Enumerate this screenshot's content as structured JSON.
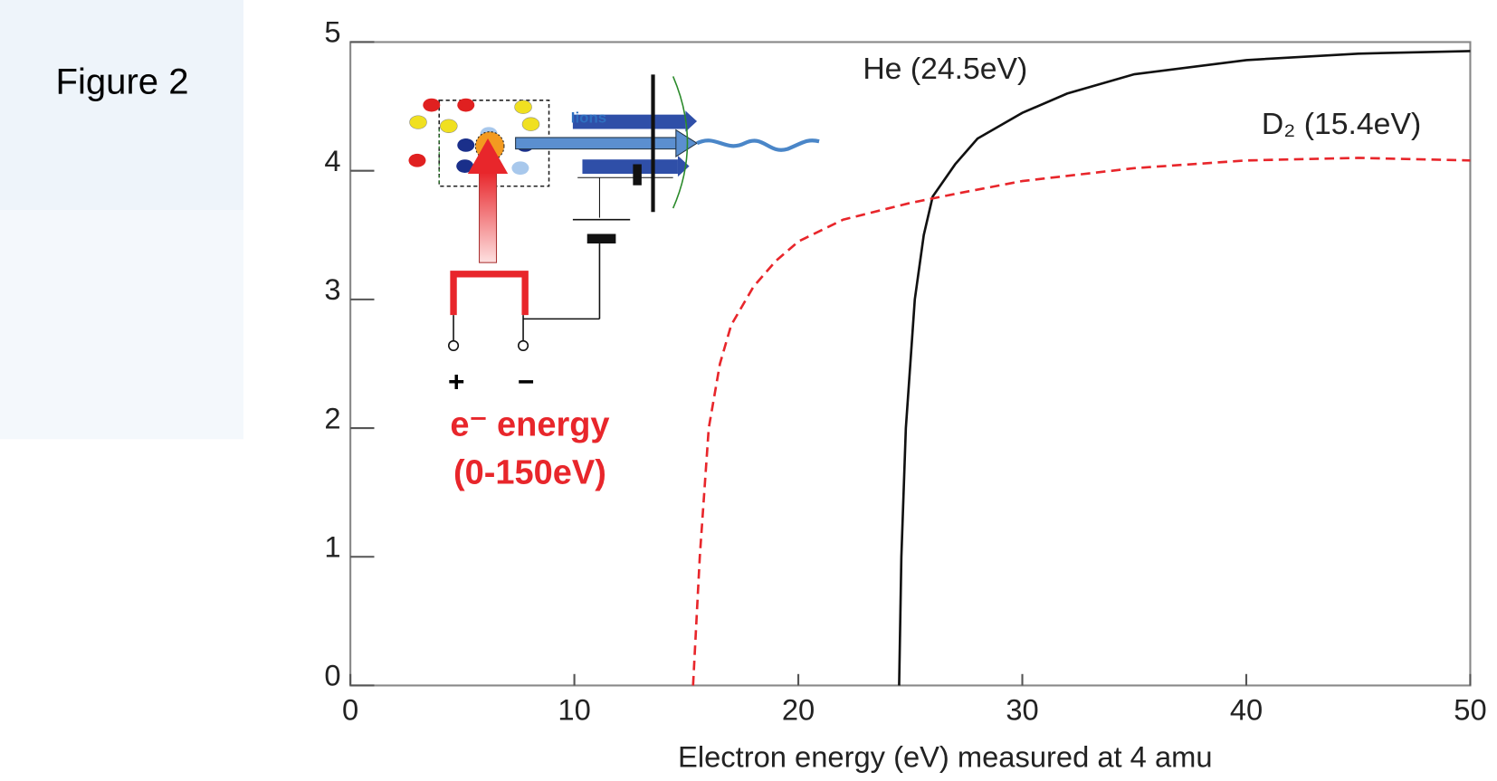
{
  "figure_label": "Figure 2",
  "chart_data": {
    "type": "line",
    "xlabel": "Electron energy (eV) measured at 4 amu",
    "xlim": [
      0,
      50
    ],
    "xticks": [
      0,
      10,
      20,
      30,
      40,
      50
    ],
    "ylim": [
      0,
      5
    ],
    "yticks": [
      0,
      1,
      2,
      3,
      4,
      5
    ],
    "series": [
      {
        "name": "He (24.5eV)",
        "color": "#111111",
        "linestyle": "solid",
        "x": [
          24.5,
          24.6,
          24.8,
          25.2,
          25.6,
          26,
          27,
          28,
          30,
          32,
          35,
          40,
          45,
          50
        ],
        "values": [
          0,
          1,
          2,
          3,
          3.5,
          3.8,
          4.05,
          4.25,
          4.45,
          4.6,
          4.75,
          4.86,
          4.91,
          4.93
        ]
      },
      {
        "name": "D₂ (15.4eV)",
        "color": "#e8262b",
        "linestyle": "dashed",
        "x": [
          15.3,
          15.6,
          16,
          16.5,
          17,
          18,
          19,
          20,
          22,
          25,
          27,
          30,
          35,
          40,
          45,
          50
        ],
        "values": [
          0,
          1,
          2,
          2.5,
          2.8,
          3.1,
          3.3,
          3.45,
          3.62,
          3.75,
          3.82,
          3.92,
          4.02,
          4.08,
          4.1,
          4.08
        ]
      }
    ],
    "annotations": [
      "Iions",
      "+",
      "−",
      "e⁻ energy",
      "(0-150eV)"
    ]
  }
}
